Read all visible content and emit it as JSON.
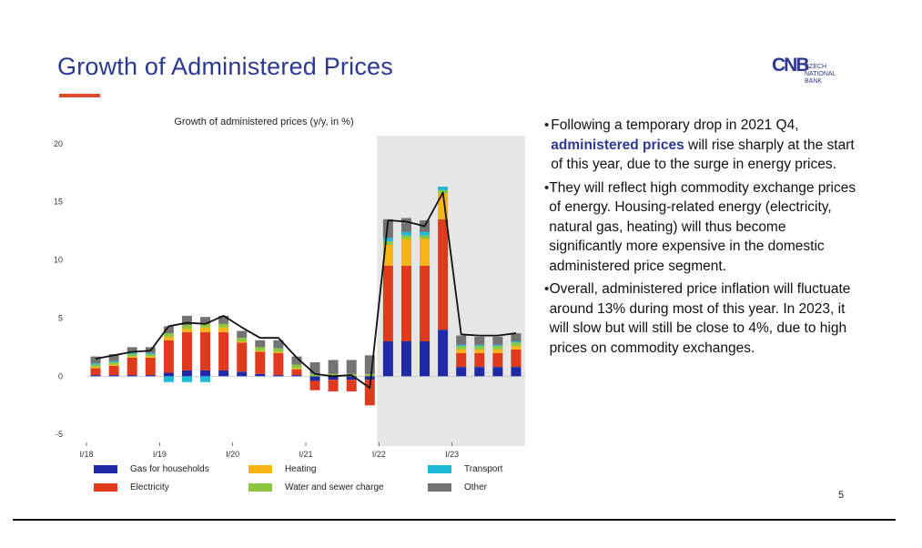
{
  "slide": {
    "title": "Growth of Administered Prices",
    "page_number": "5",
    "logo": {
      "mark": "CNB",
      "text": "CZECH\nNATIONAL BANK"
    },
    "bullets": [
      {
        "before": "Following a temporary drop in 2021 Q4, ",
        "highlight": "administered prices",
        "after": " will rise sharply at the start of this year, due to the surge in energy prices."
      },
      {
        "before": "They will reflect high commodity exchange prices of energy. Housing-related energy (electricity, natural gas, heating) will thus become significantly more expensive in the domestic administered price segment.",
        "highlight": "",
        "after": ""
      },
      {
        "before": "Overall, administered price inflation will fluctuate around 13% during most of this year. In 2023, it will slow but will still be close to 4%, due to high prices on commodity exchanges.",
        "highlight": "",
        "after": ""
      }
    ]
  },
  "chart_data": {
    "type": "bar",
    "title": "Growth of administered prices (y/y, in %)",
    "ylim": [
      -6,
      21
    ],
    "yticks": [
      -5,
      0,
      5,
      10,
      15,
      20
    ],
    "xtick_labels": [
      {
        "index": 0,
        "label": "I/18"
      },
      {
        "index": 4,
        "label": "I/19"
      },
      {
        "index": 8,
        "label": "I/20"
      },
      {
        "index": 12,
        "label": "I/21"
      },
      {
        "index": 16,
        "label": "I/22"
      },
      {
        "index": 20,
        "label": "I/23"
      }
    ],
    "n_quarters": 24,
    "forecast_start_index": 16,
    "colors": {
      "gas": "#1f2aa8",
      "electricity": "#e03a1e",
      "heating": "#f7b515",
      "water": "#8cc63f",
      "transport": "#1fb8d6",
      "other": "#737373",
      "total": "#111111",
      "forecast_bg": "#e6e6e6"
    },
    "legend": [
      {
        "key": "gas",
        "label": "Gas for households"
      },
      {
        "key": "heating",
        "label": "Heating"
      },
      {
        "key": "transport",
        "label": "Transport"
      },
      {
        "key": "electricity",
        "label": "Electricity"
      },
      {
        "key": "water",
        "label": "Water and sewer charge"
      },
      {
        "key": "other",
        "label": "Other"
      }
    ],
    "series": [
      {
        "key": "gas",
        "name": "Gas for households",
        "values": [
          0.1,
          0.1,
          0.1,
          0.1,
          0.3,
          0.5,
          0.5,
          0.5,
          0.4,
          0.2,
          0.1,
          0.1,
          -0.4,
          -0.3,
          -0.3,
          -0.3,
          3.0,
          3.0,
          3.0,
          4.0,
          0.8,
          0.8,
          0.8,
          0.8
        ]
      },
      {
        "key": "electricity",
        "name": "Electricity",
        "values": [
          0.6,
          0.8,
          1.5,
          1.5,
          2.8,
          3.3,
          3.3,
          3.3,
          2.5,
          1.9,
          1.9,
          0.5,
          -0.8,
          -1.0,
          -1.0,
          -2.2,
          6.5,
          6.5,
          6.5,
          9.5,
          1.2,
          1.2,
          1.2,
          1.5
        ]
      },
      {
        "key": "heating",
        "name": "Heating",
        "values": [
          0.1,
          0.1,
          0.1,
          0.1,
          0.3,
          0.3,
          0.4,
          0.4,
          0.1,
          0.1,
          0.1,
          0.1,
          0.0,
          0.0,
          0.0,
          0.0,
          1.8,
          2.3,
          2.3,
          2.2,
          0.3,
          0.3,
          0.3,
          0.3
        ]
      },
      {
        "key": "water",
        "name": "Water and sewer charge",
        "values": [
          0.2,
          0.2,
          0.2,
          0.2,
          0.3,
          0.3,
          0.3,
          0.3,
          0.3,
          0.3,
          0.3,
          0.3,
          0.2,
          0.2,
          0.2,
          0.2,
          0.3,
          0.3,
          0.3,
          0.3,
          0.3,
          0.3,
          0.3,
          0.3
        ]
      },
      {
        "key": "transport",
        "name": "Transport",
        "values": [
          0.1,
          0.1,
          0.1,
          0.1,
          -0.5,
          -0.5,
          -0.5,
          0.0,
          0.0,
          0.0,
          0.0,
          0.0,
          0.0,
          0.0,
          0.0,
          0.0,
          0.3,
          0.3,
          0.3,
          0.3,
          0.1,
          0.1,
          0.1,
          0.1
        ]
      },
      {
        "key": "other",
        "name": "Other",
        "values": [
          0.6,
          0.6,
          0.5,
          0.5,
          0.6,
          0.8,
          0.6,
          0.7,
          0.6,
          0.6,
          0.7,
          0.7,
          1.0,
          1.2,
          1.2,
          1.6,
          1.6,
          1.2,
          1.0,
          0.0,
          0.8,
          0.7,
          0.7,
          0.7
        ]
      }
    ],
    "total": {
      "key": "total",
      "values": [
        1.5,
        1.8,
        2.1,
        2.2,
        4.3,
        4.6,
        4.5,
        5.2,
        4.2,
        3.3,
        3.3,
        1.6,
        0.2,
        0.0,
        0.1,
        -1.0,
        13.4,
        13.3,
        12.9,
        15.8,
        3.6,
        3.5,
        3.5,
        3.7
      ]
    }
  }
}
